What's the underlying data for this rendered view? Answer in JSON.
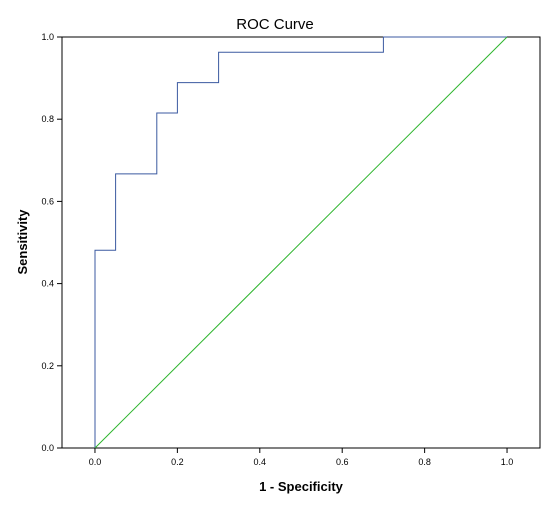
{
  "chart_data": {
    "type": "line",
    "title": "ROC Curve",
    "xlabel": "1 - Specificity",
    "ylabel": "Sensitivity",
    "xlim": [
      -0.08,
      1.08
    ],
    "ylim": [
      0.0,
      1.0
    ],
    "xticks": [
      0.0,
      0.2,
      0.4,
      0.6,
      0.8,
      1.0
    ],
    "xtick_labels": [
      "0.0",
      "0.2",
      "0.4",
      "0.6",
      "0.8",
      "1.0"
    ],
    "yticks": [
      0.0,
      0.2,
      0.4,
      0.6,
      0.8,
      1.0
    ],
    "ytick_labels": [
      "0.0",
      "0.2",
      "0.4",
      "0.6",
      "0.8",
      "1.0"
    ],
    "grid": false,
    "series": [
      {
        "color": "#3b5aa0",
        "step": true,
        "x": [
          0.0,
          0.0,
          0.05,
          0.05,
          0.15,
          0.15,
          0.2,
          0.2,
          0.3,
          0.3,
          0.7,
          0.7,
          1.0
        ],
        "y": [
          0.0,
          0.481,
          0.481,
          0.667,
          0.667,
          0.815,
          0.815,
          0.889,
          0.889,
          0.963,
          0.963,
          1.0,
          1.0
        ]
      },
      {
        "color": "#2db52d",
        "step": false,
        "x": [
          0.0,
          1.0
        ],
        "y": [
          0.0,
          1.0
        ]
      }
    ]
  }
}
